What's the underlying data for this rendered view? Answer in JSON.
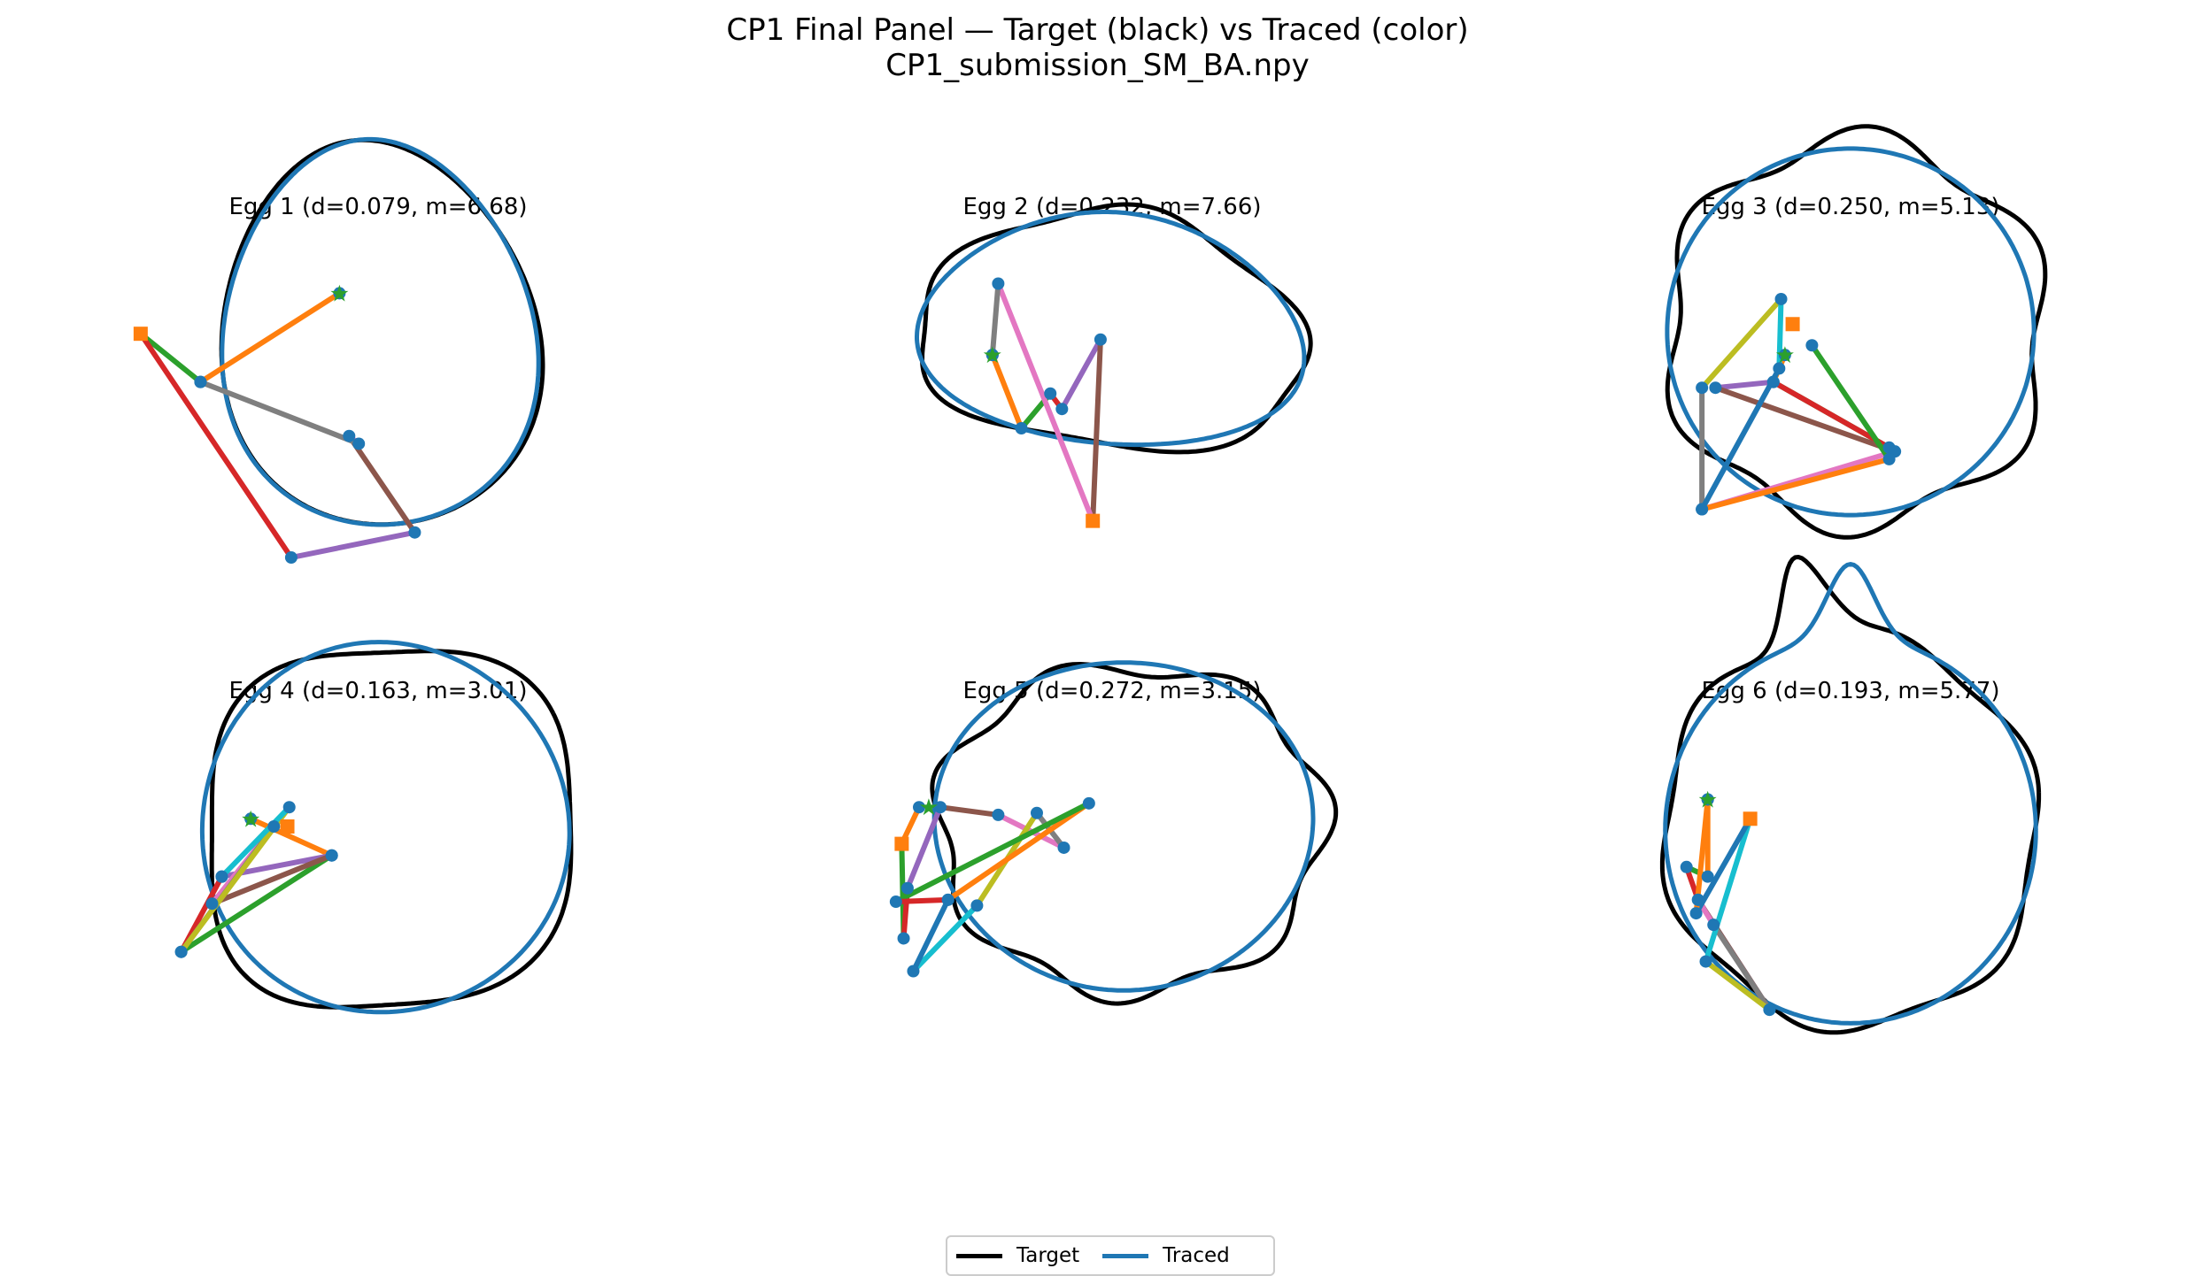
{
  "title_line1": "CP1 Final Panel — Target (black) vs Traced (color)",
  "title_line2": "CP1_submission_SM_BA.npy",
  "colors": {
    "target": "#000000",
    "traced": "#1f77b4",
    "palette": [
      "#1f77b4",
      "#ff7f0e",
      "#2ca02c",
      "#d62728",
      "#9467bd",
      "#8c564b",
      "#e377c2",
      "#7f7f7f",
      "#bcbd22",
      "#17becf"
    ],
    "start_marker": "#2ca02c",
    "end_marker": "#ff7f0e"
  },
  "legend": {
    "target_label": "Target",
    "traced_label": "Traced",
    "placement": "lower center"
  },
  "chart_data": [
    {
      "type": "line",
      "title": "Egg 1  (d=0.079, m=6.68)",
      "xlim": [
        -1.2,
        1.2
      ],
      "ylim": [
        -1.2,
        1.2
      ],
      "axis": "off",
      "target": {
        "cx": 0.0,
        "cy": 0.0,
        "rx": 0.82,
        "ry": 1.0,
        "egg": 0.15,
        "wave_amp": 0.0,
        "wave_freq": 0,
        "rot": 0.15
      },
      "traced": {
        "cx": 0.0,
        "cy": 0.0,
        "rx": 0.81,
        "ry": 1.0,
        "egg": 0.15,
        "rot": 0.08
      },
      "path": [
        [
          -0.2,
          0.2
        ],
        [
          -0.92,
          -0.26
        ],
        [
          -1.23,
          -0.01
        ],
        [
          -0.45,
          -1.17
        ],
        [
          0.19,
          -1.04
        ],
        [
          -0.15,
          -0.54
        ],
        [
          -0.1,
          -0.58
        ],
        [
          -0.92,
          -0.26
        ]
      ],
      "start": [
        -0.2,
        0.2
      ],
      "end": [
        -1.23,
        -0.01
      ]
    },
    {
      "type": "line",
      "title": "Egg 2  (d=0.232, m=7.66)",
      "xlim": [
        -1.2,
        1.2
      ],
      "ylim": [
        -1.2,
        1.2
      ],
      "axis": "off",
      "target": {
        "cx": 0.0,
        "cy": 0.02,
        "rx": 1.0,
        "ry": 0.62,
        "egg": 0.18,
        "wave_amp": 0.05,
        "wave_freq": 5,
        "rot": -0.1
      },
      "traced": {
        "cx": 0.0,
        "cy": 0.02,
        "rx": 0.99,
        "ry": 0.6,
        "egg": 0.18,
        "rot": -0.08
      },
      "path": [
        [
          -0.62,
          -0.12
        ],
        [
          -0.47,
          -0.5
        ],
        [
          -0.32,
          -0.32
        ],
        [
          -0.26,
          -0.4
        ],
        [
          -0.06,
          -0.04
        ],
        [
          -0.1,
          -0.98
        ],
        [
          -0.59,
          0.25
        ],
        [
          -0.62,
          -0.12
        ]
      ],
      "start": [
        -0.62,
        -0.12
      ],
      "end": [
        -0.1,
        -0.98
      ]
    },
    {
      "type": "line",
      "title": "Egg 3  (d=0.250, m=5.13)",
      "xlim": [
        -1.2,
        1.2
      ],
      "ylim": [
        -1.2,
        1.2
      ],
      "axis": "off",
      "target": {
        "cx": 0.03,
        "cy": 0.0,
        "rx": 0.98,
        "ry": 1.0,
        "egg": 0.0,
        "wave_amp": 0.07,
        "wave_freq": 6,
        "rot": 0.3
      },
      "traced": {
        "cx": 0.0,
        "cy": 0.0,
        "rx": 0.95,
        "ry": 0.95,
        "egg": 0.0,
        "rot": 0.0
      },
      "path": [
        [
          -0.34,
          -0.12
        ],
        [
          -0.4,
          -0.26
        ],
        [
          0.2,
          -0.6
        ],
        [
          -0.4,
          -0.26
        ],
        [
          -0.7,
          -0.29
        ],
        [
          0.23,
          -0.62
        ],
        [
          -0.77,
          -0.92
        ],
        [
          -0.77,
          -0.29
        ],
        [
          -0.36,
          0.17
        ],
        [
          -0.37,
          -0.19
        ],
        [
          -0.77,
          -0.92
        ],
        [
          0.2,
          -0.66
        ],
        [
          -0.2,
          -0.07
        ]
      ],
      "start": [
        -0.34,
        -0.12
      ],
      "end": [
        -0.3,
        0.04
      ]
    },
    {
      "type": "line",
      "title": "Egg 4  (d=0.163, m=3.01)",
      "xlim": [
        -1.2,
        1.2
      ],
      "ylim": [
        -1.2,
        1.2
      ],
      "axis": "off",
      "target": {
        "cx": 0.05,
        "cy": 0.0,
        "rx": 1.0,
        "ry": 0.96,
        "egg": 0.05,
        "wave_amp": 0.06,
        "wave_freq": 4,
        "rot": 0.6
      },
      "traced": {
        "cx": 0.03,
        "cy": 0.0,
        "rx": 0.95,
        "ry": 0.96,
        "egg": 0.04,
        "rot": 0.3
      },
      "path": [
        [
          -0.66,
          0.04
        ],
        [
          -0.24,
          -0.15
        ],
        [
          -1.02,
          -0.65
        ],
        [
          -0.81,
          -0.26
        ],
        [
          -0.24,
          -0.15
        ],
        [
          -0.86,
          -0.4
        ],
        [
          -0.54,
          0.0
        ],
        [
          -1.02,
          -0.65
        ],
        [
          -0.46,
          0.1
        ],
        [
          -0.81,
          -0.26
        ]
      ],
      "start": [
        -0.66,
        0.04
      ],
      "end": [
        -0.47,
        0.0
      ]
    },
    {
      "type": "line",
      "title": "Egg 5  (d=0.272, m=3.15)",
      "xlim": [
        -1.2,
        1.2
      ],
      "ylim": [
        -1.2,
        1.2
      ],
      "axis": "off",
      "target": {
        "cx": 0.1,
        "cy": -0.02,
        "rx": 1.0,
        "ry": 0.85,
        "egg": -0.05,
        "wave_amp": 0.06,
        "wave_freq": 7,
        "rot": 0.0
      },
      "traced": {
        "cx": 0.06,
        "cy": 0.0,
        "rx": 0.98,
        "ry": 0.85,
        "egg": -0.05,
        "rot": 0.0
      },
      "path": [
        [
          -1.0,
          0.1
        ],
        [
          -1.09,
          -0.09
        ],
        [
          -1.08,
          -0.58
        ],
        [
          -1.06,
          -0.32
        ],
        [
          -0.89,
          0.1
        ],
        [
          -0.59,
          0.06
        ],
        [
          -0.25,
          -0.11
        ],
        [
          -0.39,
          0.07
        ],
        [
          -0.7,
          -0.41
        ],
        [
          -1.03,
          -0.75
        ],
        [
          -0.85,
          -0.38
        ],
        [
          -0.12,
          0.12
        ],
        [
          -1.12,
          -0.39
        ],
        [
          -0.85,
          -0.38
        ]
      ],
      "start": [
        -0.95,
        0.1
      ],
      "end": [
        -1.09,
        -0.09
      ]
    },
    {
      "type": "line",
      "title": "Egg 6  (d=0.193, m=5.77)",
      "xlim": [
        -1.2,
        1.2
      ],
      "ylim": [
        -1.2,
        1.2
      ],
      "axis": "off",
      "target": {
        "cx": 0.0,
        "cy": -0.02,
        "rx": 0.97,
        "ry": 1.02,
        "egg": 0.0,
        "wave_amp": 0.04,
        "wave_freq": 6,
        "rot": 0.2,
        "bump": 0.45
      },
      "traced": {
        "cx": 0.0,
        "cy": -0.02,
        "rx": 0.96,
        "ry": 1.0,
        "egg": 0.0,
        "rot": 0.0,
        "bump": 0.38
      },
      "path": [
        [
          -0.74,
          0.14
        ],
        [
          -0.74,
          -0.26
        ],
        [
          -0.85,
          -0.21
        ],
        [
          -0.79,
          -0.38
        ],
        [
          -0.42,
          -0.95
        ],
        [
          -0.79,
          -0.38
        ],
        [
          -0.71,
          -0.51
        ],
        [
          -0.42,
          -0.95
        ],
        [
          -0.75,
          -0.7
        ],
        [
          -0.52,
          0.04
        ],
        [
          -0.8,
          -0.45
        ],
        [
          -0.74,
          0.14
        ]
      ],
      "start": [
        -0.74,
        0.14
      ],
      "end": [
        -0.52,
        0.04
      ]
    }
  ]
}
